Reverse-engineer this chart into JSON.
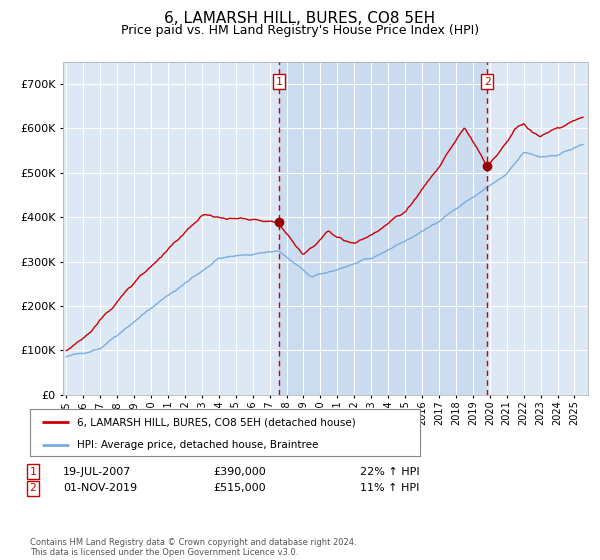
{
  "title": "6, LAMARSH HILL, BURES, CO8 5EH",
  "subtitle": "Price paid vs. HM Land Registry's House Price Index (HPI)",
  "title_fontsize": 11,
  "subtitle_fontsize": 9,
  "background_color": "#ffffff",
  "plot_bg_color": "#dde8f5",
  "grid_color": "#ffffff",
  "legend1": "6, LAMARSH HILL, BURES, CO8 5EH (detached house)",
  "legend2": "HPI: Average price, detached house, Braintree",
  "red_line_color": "#cc0000",
  "blue_line_color": "#7aaddd",
  "marker_color": "#990000",
  "vline_color": "#cc0000",
  "shade_color": "#c8daf0",
  "annotation1_date": "19-JUL-2007",
  "annotation1_price": "£390,000",
  "annotation1_hpi": "22% ↑ HPI",
  "annotation2_date": "01-NOV-2019",
  "annotation2_price": "£515,000",
  "annotation2_hpi": "11% ↑ HPI",
  "footer": "Contains HM Land Registry data © Crown copyright and database right 2024.\nThis data is licensed under the Open Government Licence v3.0.",
  "ylim": [
    0,
    750000
  ],
  "yticks": [
    0,
    100000,
    200000,
    300000,
    400000,
    500000,
    600000,
    700000
  ],
  "ytick_labels": [
    "£0",
    "£100K",
    "£200K",
    "£300K",
    "£400K",
    "£500K",
    "£600K",
    "£700K"
  ],
  "vline1_x": 2007.54,
  "vline2_x": 2019.84,
  "marker1_x": 2007.54,
  "marker1_y": 390000,
  "marker2_x": 2019.84,
  "marker2_y": 515000,
  "shade_start": 2007.54,
  "shade_end": 2019.84,
  "xlim_left": 1994.8,
  "xlim_right": 2025.8
}
